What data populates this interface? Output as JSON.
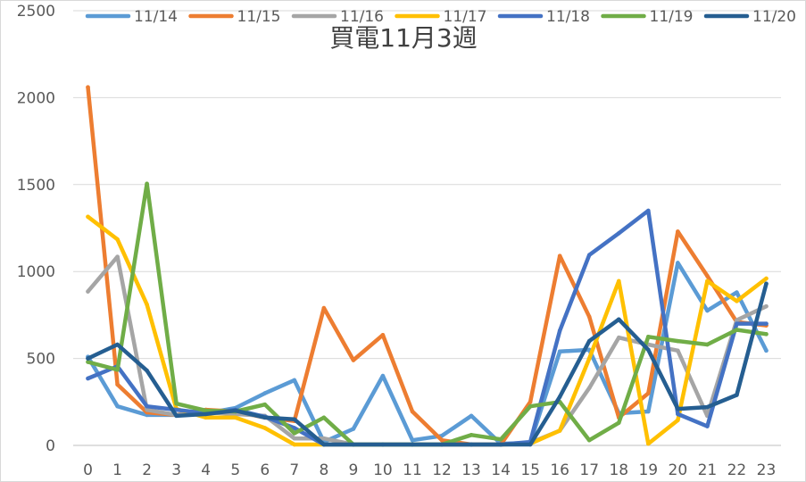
{
  "chart_data": {
    "type": "line",
    "title": "買電11月3週",
    "xlabel": "",
    "ylabel": "",
    "ylim": [
      0,
      2500
    ],
    "y_ticks": [
      "0",
      "500",
      "1000",
      "1500",
      "2000",
      "2500"
    ],
    "categories": [
      "0",
      "1",
      "2",
      "3",
      "4",
      "5",
      "6",
      "7",
      "8",
      "9",
      "10",
      "11",
      "12",
      "13",
      "14",
      "15",
      "16",
      "17",
      "18",
      "19",
      "20",
      "21",
      "22",
      "23"
    ],
    "grid": true,
    "legend_position": "top",
    "series": [
      {
        "name": "11/14",
        "color": "#5B9BD5",
        "values": [
          510,
          225,
          175,
          175,
          185,
          215,
          300,
          375,
          20,
          95,
          400,
          30,
          55,
          170,
          10,
          15,
          540,
          550,
          185,
          195,
          1050,
          775,
          880,
          545
        ]
      },
      {
        "name": "11/15",
        "color": "#ED7D31",
        "values": [
          2060,
          350,
          190,
          175,
          205,
          195,
          160,
          140,
          790,
          490,
          635,
          195,
          30,
          5,
          5,
          250,
          1090,
          740,
          160,
          300,
          1230,
          975,
          710,
          690
        ]
      },
      {
        "name": "11/16",
        "color": "#A5A5A5",
        "values": [
          885,
          1085,
          205,
          175,
          190,
          180,
          170,
          40,
          40,
          5,
          5,
          5,
          5,
          5,
          5,
          15,
          85,
          330,
          620,
          580,
          545,
          170,
          720,
          800
        ]
      },
      {
        "name": "11/17",
        "color": "#FFC000",
        "values": [
          1315,
          1185,
          810,
          210,
          160,
          160,
          100,
          5,
          5,
          5,
          5,
          5,
          5,
          5,
          5,
          10,
          85,
          500,
          945,
          10,
          145,
          945,
          830,
          960
        ]
      },
      {
        "name": "11/18",
        "color": "#4472C4",
        "values": [
          385,
          455,
          225,
          205,
          185,
          205,
          165,
          100,
          5,
          5,
          5,
          5,
          5,
          5,
          5,
          20,
          660,
          1095,
          1220,
          1350,
          180,
          110,
          700,
          700
        ]
      },
      {
        "name": "11/19",
        "color": "#70AD47",
        "values": [
          480,
          435,
          1505,
          240,
          200,
          195,
          235,
          70,
          160,
          5,
          5,
          5,
          5,
          60,
          35,
          225,
          250,
          30,
          130,
          625,
          600,
          580,
          665,
          640
        ]
      },
      {
        "name": "11/20",
        "color": "#255E91",
        "values": [
          500,
          580,
          430,
          170,
          180,
          200,
          160,
          150,
          5,
          5,
          5,
          5,
          5,
          5,
          5,
          5,
          280,
          600,
          725,
          550,
          210,
          220,
          290,
          930
        ]
      }
    ]
  }
}
